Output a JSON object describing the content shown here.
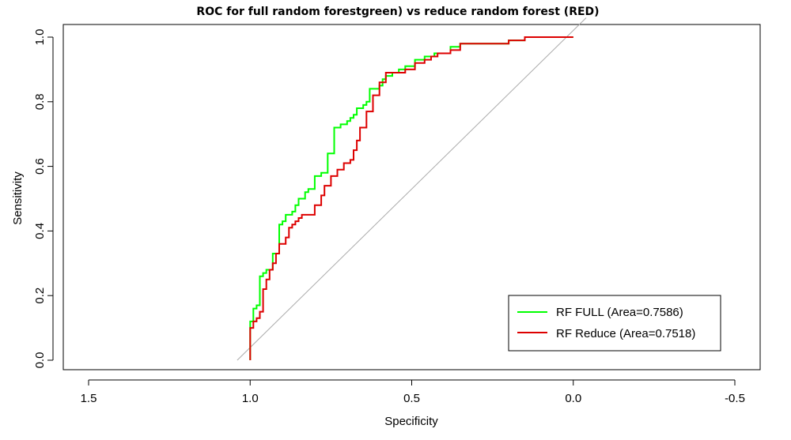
{
  "chart_data": {
    "type": "line",
    "title": "ROC for full random forestgreen) vs reduce random forest (RED)",
    "xlabel": "Specificity",
    "ylabel": "Sensitivity",
    "xlim": [
      1.5,
      -0.5
    ],
    "ylim": [
      0.0,
      1.0
    ],
    "x_ticks": [
      1.5,
      1.0,
      0.5,
      0.0,
      -0.5
    ],
    "x_tick_labels": [
      "1.5",
      "1.0",
      "0.5",
      "0.0",
      "-0.5"
    ],
    "y_ticks": [
      0.0,
      0.2,
      0.4,
      0.6,
      0.8,
      1.0
    ],
    "y_tick_labels": [
      "0.0",
      "0.2",
      "0.4",
      "0.6",
      "0.8",
      "1.0"
    ],
    "grid": false,
    "legend_position": "bottom-right",
    "reference_line": {
      "x": [
        1.04,
        -0.04
      ],
      "y": [
        0.0,
        1.06
      ],
      "color": "#aaaaaa"
    },
    "series": [
      {
        "name": "RF FULL (Area=0.7586)",
        "color": "#00ff00",
        "x": [
          1.0,
          1.0,
          0.99,
          0.98,
          0.98,
          0.97,
          0.97,
          0.96,
          0.96,
          0.95,
          0.95,
          0.93,
          0.93,
          0.91,
          0.91,
          0.9,
          0.89,
          0.88,
          0.87,
          0.86,
          0.85,
          0.83,
          0.82,
          0.8,
          0.78,
          0.77,
          0.76,
          0.74,
          0.72,
          0.7,
          0.7,
          0.69,
          0.68,
          0.67,
          0.66,
          0.65,
          0.64,
          0.63,
          0.6,
          0.59,
          0.58,
          0.56,
          0.54,
          0.52,
          0.49,
          0.46,
          0.43,
          0.4,
          0.38,
          0.35,
          0.3,
          0.25,
          0.2,
          0.17,
          0.15,
          0.12,
          0.08,
          0.04,
          0.0
        ],
        "y": [
          0.0,
          0.11,
          0.12,
          0.16,
          0.17,
          0.17,
          0.25,
          0.26,
          0.27,
          0.27,
          0.28,
          0.28,
          0.33,
          0.33,
          0.4,
          0.42,
          0.43,
          0.45,
          0.45,
          0.46,
          0.48,
          0.5,
          0.52,
          0.53,
          0.57,
          0.58,
          0.58,
          0.64,
          0.72,
          0.73,
          0.74,
          0.74,
          0.75,
          0.76,
          0.78,
          0.78,
          0.79,
          0.8,
          0.84,
          0.85,
          0.87,
          0.88,
          0.89,
          0.9,
          0.91,
          0.93,
          0.94,
          0.95,
          0.95,
          0.97,
          0.98,
          0.98,
          0.98,
          0.99,
          0.99,
          1.0,
          1.0,
          1.0,
          1.0
        ]
      },
      {
        "name": "RF Reduce (Area=0.7518)",
        "color": "#dd0000",
        "x": [
          1.0,
          1.0,
          0.99,
          0.98,
          0.97,
          0.96,
          0.96,
          0.95,
          0.94,
          0.93,
          0.92,
          0.91,
          0.9,
          0.89,
          0.88,
          0.87,
          0.86,
          0.85,
          0.84,
          0.83,
          0.82,
          0.8,
          0.78,
          0.77,
          0.75,
          0.73,
          0.71,
          0.69,
          0.68,
          0.67,
          0.66,
          0.64,
          0.62,
          0.6,
          0.58,
          0.57,
          0.55,
          0.54,
          0.52,
          0.49,
          0.46,
          0.44,
          0.42,
          0.4,
          0.38,
          0.35,
          0.32,
          0.28,
          0.24,
          0.2,
          0.17,
          0.15,
          0.12,
          0.08,
          0.04,
          0.0
        ],
        "y": [
          0.0,
          0.07,
          0.1,
          0.12,
          0.13,
          0.15,
          0.19,
          0.22,
          0.25,
          0.28,
          0.3,
          0.33,
          0.36,
          0.36,
          0.38,
          0.41,
          0.42,
          0.43,
          0.44,
          0.45,
          0.45,
          0.45,
          0.48,
          0.51,
          0.54,
          0.57,
          0.59,
          0.61,
          0.62,
          0.65,
          0.68,
          0.72,
          0.77,
          0.82,
          0.86,
          0.89,
          0.89,
          0.89,
          0.89,
          0.9,
          0.92,
          0.93,
          0.94,
          0.95,
          0.95,
          0.96,
          0.98,
          0.98,
          0.98,
          0.98,
          0.99,
          0.99,
          1.0,
          1.0,
          1.0,
          1.0
        ]
      }
    ]
  }
}
